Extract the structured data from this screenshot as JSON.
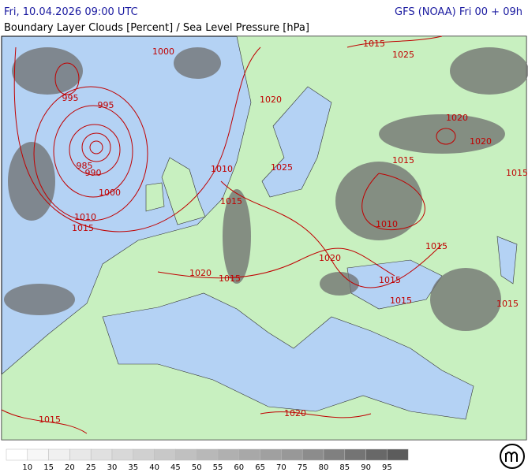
{
  "header": {
    "datetime": "Fri, 10.04.2026 09:00 UTC",
    "model": "GFS (NOAA) Fri 00 + 09h",
    "title": "Boundary Layer Clouds [Percent] / Sea Level Pressure [hPa]"
  },
  "isobar_labels": [
    1000,
    1025,
    1015,
    995,
    995,
    1020,
    1020,
    1020,
    985,
    990,
    1000,
    1010,
    1025,
    1015,
    1015,
    1010,
    1015,
    1010,
    1020,
    1020,
    1015,
    1015,
    1015,
    1015,
    1015,
    1020,
    1015,
    1015
  ],
  "legend": {
    "labels": [
      10,
      15,
      20,
      25,
      30,
      35,
      40,
      45,
      50,
      55,
      60,
      65,
      70,
      75,
      80,
      85,
      90,
      95
    ],
    "colors": [
      "#ffffff",
      "#f7f7f7",
      "#f0f0f0",
      "#e8e8e8",
      "#e0e0e0",
      "#d8d8d8",
      "#d0d0d0",
      "#c8c8c8",
      "#c0c0c0",
      "#b8b8b8",
      "#b0b0b0",
      "#a8a8a8",
      "#a0a0a0",
      "#989898",
      "#8c8c8c",
      "#808080",
      "#747474",
      "#686868",
      "#5c5c5c"
    ]
  }
}
